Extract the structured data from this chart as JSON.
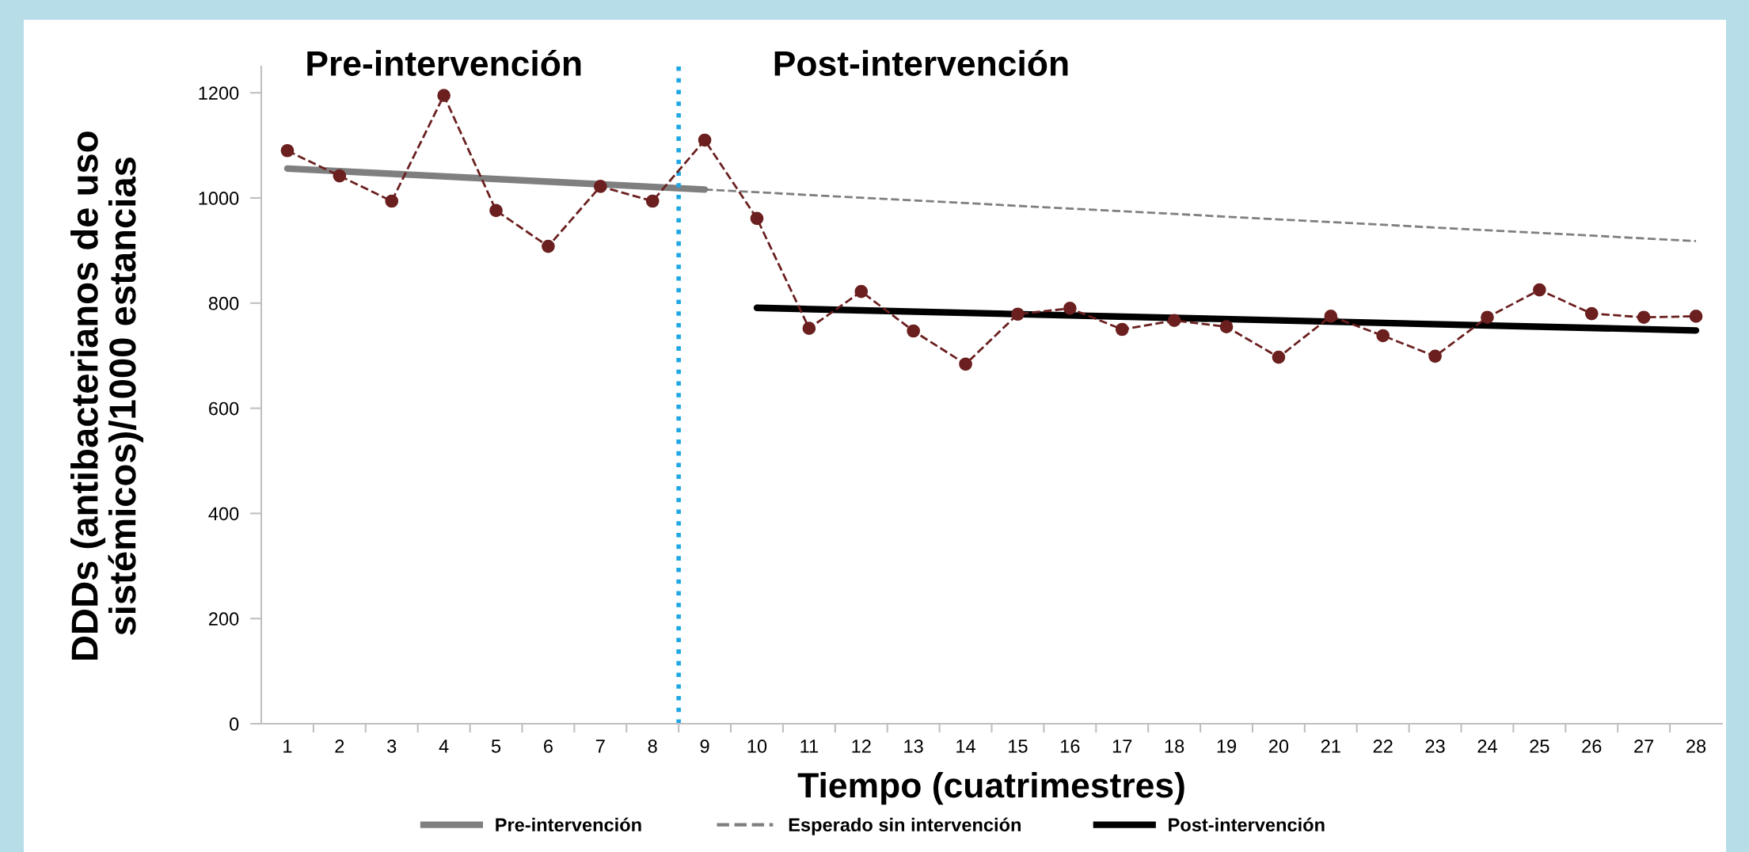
{
  "chart_data": {
    "type": "line",
    "xlabel": "Tiempo (cuatrimestres)",
    "ylabel": "DDDs (antibacterianos de uso sistémicos)/1000 estancias",
    "annotations": [
      "Pre-intervención",
      "Post-intervención"
    ],
    "xlim": [
      0.5,
      28.5
    ],
    "xticks": [
      1,
      2,
      3,
      4,
      5,
      6,
      7,
      8,
      9,
      10,
      11,
      12,
      13,
      14,
      15,
      16,
      17,
      18,
      19,
      20,
      21,
      22,
      23,
      24,
      25,
      26,
      27,
      28
    ],
    "ylim": [
      0,
      1250
    ],
    "yticks": [
      0,
      200,
      400,
      600,
      800,
      1000,
      1200
    ],
    "grid": false,
    "legend": "bottom",
    "ref_lines": [
      {
        "axis": "x",
        "value": 8.5,
        "color": "#1ea7e4",
        "line_style": "dotted"
      }
    ],
    "series": [
      {
        "color": "#6b1f1f",
        "marker": "circle",
        "line_style": "dashed",
        "x": [
          1,
          2,
          3,
          4,
          5,
          6,
          7,
          8,
          9,
          10,
          11,
          12,
          13,
          14,
          15,
          16,
          17,
          18,
          19,
          20,
          21,
          22,
          23,
          24,
          25,
          26,
          27,
          28
        ],
        "values": [
          1090,
          1042,
          994,
          1195,
          976,
          908,
          1022,
          994,
          1110,
          961,
          752,
          822,
          747,
          684,
          779,
          790,
          750,
          767,
          755,
          697,
          775,
          738,
          699,
          773,
          825,
          780,
          773,
          775
        ]
      },
      {
        "name": "Pre-intervención",
        "color": "#7f7f7f",
        "marker": "none",
        "line_style": "solid",
        "x": [
          1,
          9
        ],
        "values": [
          1056,
          1016
        ]
      },
      {
        "name": "Esperado sin intervención",
        "color": "#7f7f7f",
        "marker": "none",
        "line_style": "dashed",
        "x": [
          9,
          28
        ],
        "values": [
          1016,
          918
        ]
      },
      {
        "name": "Post-intervención",
        "color": "#000000",
        "marker": "none",
        "line_style": "solid",
        "x": [
          10,
          28
        ],
        "values": [
          791,
          748
        ]
      }
    ]
  }
}
